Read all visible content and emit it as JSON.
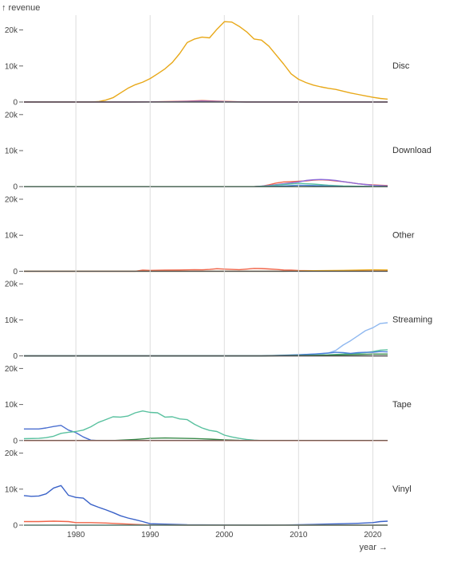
{
  "chart_data": {
    "type": "line",
    "ylabel": "↑ revenue",
    "xlabel": "year →",
    "xlim": [
      1973,
      2022
    ],
    "ylim": [
      0,
      25000
    ],
    "x_ticks": [
      1980,
      1990,
      2000,
      2010,
      2020
    ],
    "x_tick_labels": [
      "1980",
      "1990",
      "2000",
      "2010",
      "2020"
    ],
    "y_ticks": [
      0,
      10000,
      20000
    ],
    "y_tick_labels": [
      "0",
      "10k",
      "20k"
    ],
    "grid": true,
    "facet_by": "format",
    "facets": [
      {
        "name": "Disc",
        "series": [
          {
            "color": "#e8a818",
            "x": [
              1973,
              1982,
              1983,
              1984,
              1985,
              1986,
              1987,
              1988,
              1989,
              1990,
              1991,
              1992,
              1993,
              1994,
              1995,
              1996,
              1997,
              1998,
              1999,
              2000,
              2001,
              2002,
              2003,
              2004,
              2005,
              2006,
              2007,
              2008,
              2009,
              2010,
              2011,
              2012,
              2013,
              2014,
              2015,
              2016,
              2017,
              2018,
              2019,
              2020,
              2021,
              2022
            ],
            "y": [
              0,
              0,
              100,
              500,
              1200,
              2500,
              3800,
              4800,
              5500,
              6500,
              7800,
              9200,
              11000,
              13500,
              16500,
              17500,
              18000,
              17800,
              20200,
              22300,
              22200,
              21000,
              19500,
              17500,
              17200,
              15500,
              13000,
              10500,
              7800,
              6300,
              5400,
              4700,
              4200,
              3800,
              3500,
              3000,
              2500,
              2100,
              1700,
              1300,
              1000,
              800
            ]
          },
          {
            "color": "#f06448",
            "x": [
              1973,
              1987,
              1990,
              1993,
              1995,
              1997,
              1999,
              2001,
              2003,
              2022
            ],
            "y": [
              0,
              0,
              50,
              150,
              250,
              400,
              250,
              100,
              0,
              0
            ]
          },
          {
            "color": "#8c6ad8",
            "x": [
              1973,
              1987,
              1992,
              1995,
              1997,
              1999,
              2001,
              2003,
              2022
            ],
            "y": [
              0,
              0,
              50,
              150,
              250,
              150,
              50,
              0,
              0
            ]
          },
          {
            "color": "#555555",
            "x": [
              1973,
              2022
            ],
            "y": [
              0,
              0
            ]
          }
        ]
      },
      {
        "name": "Download",
        "series": [
          {
            "color": "#f06448",
            "x": [
              1973,
              2004,
              2005,
              2006,
              2007,
              2008,
              2009,
              2010,
              2011,
              2012,
              2013,
              2014,
              2015,
              2016,
              2017,
              2018,
              2019,
              2020,
              2021,
              2022
            ],
            "y": [
              0,
              0,
              100,
              500,
              1000,
              1300,
              1400,
              1500,
              1600,
              1800,
              1900,
              1800,
              1600,
              1400,
              1100,
              800,
              600,
              500,
              400,
              300
            ]
          },
          {
            "color": "#8c6ad8",
            "x": [
              1973,
              2004,
              2006,
              2008,
              2010,
              2011,
              2012,
              2013,
              2014,
              2015,
              2016,
              2017,
              2018,
              2019,
              2020,
              2021,
              2022
            ],
            "y": [
              0,
              0,
              300,
              800,
              1300,
              1700,
              1900,
              2000,
              1900,
              1700,
              1400,
              1100,
              800,
              600,
              400,
              300,
              200
            ]
          },
          {
            "color": "#59c19f",
            "x": [
              1973,
              2004,
              2006,
              2008,
              2010,
              2012,
              2014,
              2016,
              2018,
              2022
            ],
            "y": [
              0,
              0,
              200,
              600,
              900,
              700,
              400,
              200,
              100,
              0
            ]
          },
          {
            "color": "#4a7fd9",
            "x": [
              1973,
              2005,
              2008,
              2010,
              2012,
              2014,
              2016,
              2022
            ],
            "y": [
              0,
              0,
              200,
              400,
              300,
              150,
              50,
              0
            ]
          },
          {
            "color": "#3a8a4a",
            "x": [
              1973,
              2022
            ],
            "y": [
              0,
              0
            ]
          }
        ]
      },
      {
        "name": "Other",
        "series": [
          {
            "color": "#f06448",
            "x": [
              1973,
              1984,
              1988,
              1989,
              1990,
              1992,
              1994,
              1996,
              1997,
              1998,
              1999,
              2000,
              2001,
              2002,
              2003,
              2004,
              2005,
              2006,
              2007,
              2008,
              2009,
              2010,
              2015,
              2022
            ],
            "y": [
              0,
              0,
              0,
              300,
              250,
              300,
              350,
              450,
              400,
              500,
              700,
              600,
              500,
              450,
              600,
              800,
              750,
              650,
              500,
              350,
              300,
              200,
              100,
              50
            ]
          },
          {
            "color": "#e8a818",
            "x": [
              1973,
              2008,
              2012,
              2016,
              2020,
              2022
            ],
            "y": [
              0,
              0,
              150,
              250,
              400,
              350
            ]
          },
          {
            "color": "#555555",
            "x": [
              1973,
              2022
            ],
            "y": [
              0,
              0
            ]
          }
        ]
      },
      {
        "name": "Streaming",
        "series": [
          {
            "color": "#8fb8f0",
            "x": [
              1973,
              2005,
              2008,
              2010,
              2011,
              2012,
              2013,
              2014,
              2015,
              2016,
              2017,
              2018,
              2019,
              2020,
              2021,
              2022
            ],
            "y": [
              0,
              0,
              150,
              300,
              400,
              500,
              600,
              800,
              1500,
              3000,
              4200,
              5600,
              7000,
              7800,
              9000,
              9200
            ]
          },
          {
            "color": "#59c19f",
            "x": [
              1973,
              2005,
              2010,
              2014,
              2016,
              2018,
              2019,
              2020,
              2021,
              2022
            ],
            "y": [
              0,
              0,
              100,
              300,
              500,
              700,
              900,
              1200,
              1600,
              1700
            ]
          },
          {
            "color": "#4a7fd9",
            "x": [
              1973,
              2005,
              2010,
              2012,
              2014,
              2015,
              2016,
              2017,
              2018,
              2019,
              2020,
              2021,
              2022
            ],
            "y": [
              0,
              0,
              300,
              500,
              800,
              1000,
              900,
              700,
              900,
              1000,
              1000,
              1200,
              1100
            ]
          },
          {
            "color": "#3a8a4a",
            "x": [
              1973,
              2005,
              2010,
              2014,
              2016,
              2018,
              2020,
              2022
            ],
            "y": [
              0,
              0,
              100,
              200,
              300,
              400,
              500,
              500
            ]
          },
          {
            "color": "#333333",
            "x": [
              1973,
              2022
            ],
            "y": [
              0,
              0
            ]
          }
        ]
      },
      {
        "name": "Tape",
        "series": [
          {
            "color": "#4a6fd0",
            "x": [
              1973,
              1975,
              1976,
              1977,
              1978,
              1979,
              1980,
              1981,
              1982,
              1983,
              1984,
              2022
            ],
            "y": [
              3200,
              3200,
              3500,
              3900,
              4200,
              2900,
              2200,
              1000,
              100,
              0,
              0,
              0
            ]
          },
          {
            "color": "#59c19f",
            "x": [
              1973,
              1975,
              1976,
              1977,
              1978,
              1979,
              1980,
              1981,
              1982,
              1983,
              1984,
              1985,
              1986,
              1987,
              1988,
              1989,
              1990,
              1991,
              1992,
              1993,
              1994,
              1995,
              1996,
              1997,
              1998,
              1999,
              2000,
              2001,
              2002,
              2003,
              2004,
              2005,
              2022
            ],
            "y": [
              500,
              600,
              800,
              1200,
              2000,
              2300,
              2500,
              2900,
              3800,
              5000,
              5800,
              6600,
              6500,
              6800,
              7700,
              8200,
              7800,
              7700,
              6500,
              6600,
              6000,
              5800,
              4500,
              3500,
              2800,
              2500,
              1500,
              1000,
              600,
              300,
              100,
              0,
              0
            ]
          },
          {
            "color": "#3a8a4a",
            "x": [
              1973,
              1985,
              1988,
              1990,
              1992,
              1994,
              1996,
              1998,
              2000,
              2002,
              2022
            ],
            "y": [
              0,
              0,
              300,
              600,
              700,
              650,
              550,
              400,
              200,
              50,
              0
            ]
          },
          {
            "color": "#f06448",
            "x": [
              1973,
              2022
            ],
            "y": [
              0,
              0
            ]
          }
        ]
      },
      {
        "name": "Vinyl",
        "series": [
          {
            "color": "#3a62c8",
            "x": [
              1973,
              1974,
              1975,
              1976,
              1977,
              1978,
              1979,
              1980,
              1981,
              1982,
              1983,
              1984,
              1985,
              1986,
              1987,
              1988,
              1989,
              1990,
              1995,
              2005,
              2008,
              2010,
              2012,
              2014,
              2016,
              2018,
              2020,
              2021,
              2022
            ],
            "y": [
              8200,
              8000,
              8100,
              8700,
              10300,
              11000,
              8300,
              7700,
              7500,
              5800,
              5000,
              4300,
              3500,
              2600,
              2000,
              1500,
              1000,
              400,
              100,
              0,
              50,
              100,
              200,
              300,
              400,
              500,
              700,
              1000,
              1100
            ]
          },
          {
            "color": "#f06448",
            "x": [
              1973,
              1975,
              1977,
              1979,
              1980,
              1982,
              1984,
              1986,
              1988,
              1990,
              1995,
              2022
            ],
            "y": [
              1000,
              1000,
              1100,
              1000,
              700,
              700,
              600,
              400,
              200,
              50,
              0,
              0
            ]
          },
          {
            "color": "#59c19f",
            "x": [
              1973,
              2022
            ],
            "y": [
              0,
              0
            ]
          }
        ]
      }
    ]
  }
}
